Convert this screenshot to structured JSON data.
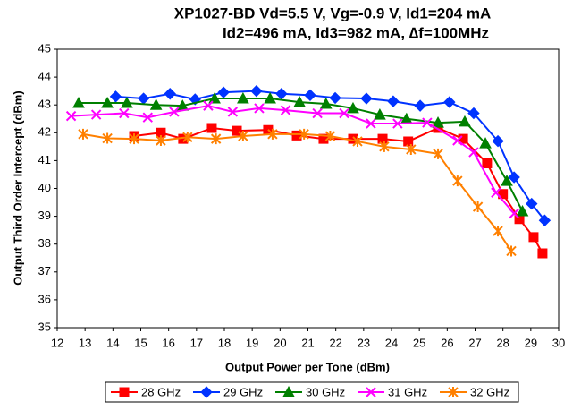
{
  "chart_data": {
    "type": "line",
    "title": [
      "XP1027-BD Vd=5.5 V, Vg=-0.9 V, Id1=204 mA",
      "Id2=496 mA, Id3=982 mA, ∆f=100MHz"
    ],
    "x_label": "Output Power per Tone (dBm)",
    "y_label": "Output Third Order Intercept (dBm)",
    "xlim": [
      12,
      30
    ],
    "ylim": [
      35,
      45
    ],
    "xticks": [
      12,
      13,
      14,
      15,
      16,
      17,
      18,
      19,
      20,
      21,
      22,
      23,
      24,
      25,
      26,
      27,
      28,
      29,
      30
    ],
    "yticks": [
      35,
      36,
      37,
      38,
      39,
      40,
      41,
      42,
      43,
      44,
      45
    ],
    "grid": false,
    "legend": "bottom",
    "series": [
      {
        "name": "28 GHz",
        "color": "#ff0000",
        "marker": "square",
        "x": [
          14.76,
          15.72,
          16.52,
          17.55,
          18.45,
          19.57,
          20.6,
          21.56,
          22.62,
          23.68,
          24.6,
          25.67,
          26.57,
          27.43,
          28.0,
          28.59,
          29.1,
          29.42
        ],
        "values": [
          41.88,
          42.0,
          41.78,
          42.17,
          42.07,
          42.1,
          41.9,
          41.78,
          41.78,
          41.78,
          41.69,
          42.17,
          41.78,
          40.9,
          39.8,
          38.9,
          38.25,
          37.67
        ]
      },
      {
        "name": "29 GHz",
        "color": "#0033ff",
        "marker": "diamond",
        "x": [
          14.1,
          15.1,
          16.05,
          16.95,
          17.97,
          19.15,
          20.05,
          21.08,
          21.98,
          23.1,
          24.06,
          25.03,
          26.08,
          26.95,
          27.82,
          28.4,
          29.03,
          29.5
        ],
        "values": [
          43.3,
          43.23,
          43.4,
          43.2,
          43.45,
          43.5,
          43.4,
          43.35,
          43.25,
          43.23,
          43.13,
          42.97,
          43.1,
          42.7,
          41.7,
          40.4,
          39.45,
          38.85
        ]
      },
      {
        "name": "30 GHz",
        "color": "#008000",
        "marker": "triangle",
        "x": [
          12.77,
          13.8,
          14.5,
          15.55,
          16.5,
          17.65,
          18.67,
          19.64,
          20.7,
          21.65,
          22.62,
          23.58,
          24.54,
          25.67,
          26.63,
          27.37,
          28.14,
          28.7
        ],
        "values": [
          43.07,
          43.07,
          43.07,
          43.0,
          42.97,
          43.23,
          43.23,
          43.23,
          43.1,
          43.04,
          42.88,
          42.65,
          42.5,
          42.36,
          42.4,
          41.62,
          40.27,
          39.18
        ]
      },
      {
        "name": "31 GHz",
        "color": "#ff00ff",
        "marker": "x",
        "x": [
          12.5,
          13.4,
          14.4,
          15.25,
          16.2,
          17.42,
          18.3,
          19.25,
          20.2,
          21.34,
          22.3,
          23.26,
          24.22,
          25.28,
          26.37,
          26.95,
          27.75,
          28.4
        ],
        "values": [
          42.6,
          42.65,
          42.7,
          42.55,
          42.75,
          42.97,
          42.75,
          42.88,
          42.81,
          42.7,
          42.7,
          42.33,
          42.33,
          42.36,
          41.72,
          41.3,
          39.85,
          39.1
        ]
      },
      {
        "name": "32 GHz",
        "color": "#ff8000",
        "marker": "star",
        "x": [
          12.93,
          13.8,
          14.76,
          15.72,
          16.68,
          17.7,
          18.67,
          19.73,
          20.86,
          21.8,
          22.78,
          23.74,
          24.7,
          25.67,
          26.37,
          27.1,
          27.82,
          28.3
        ],
        "values": [
          41.95,
          41.8,
          41.78,
          41.72,
          41.84,
          41.78,
          41.88,
          41.95,
          41.95,
          41.88,
          41.69,
          41.5,
          41.4,
          41.24,
          40.27,
          39.34,
          38.47,
          37.75
        ]
      }
    ]
  }
}
